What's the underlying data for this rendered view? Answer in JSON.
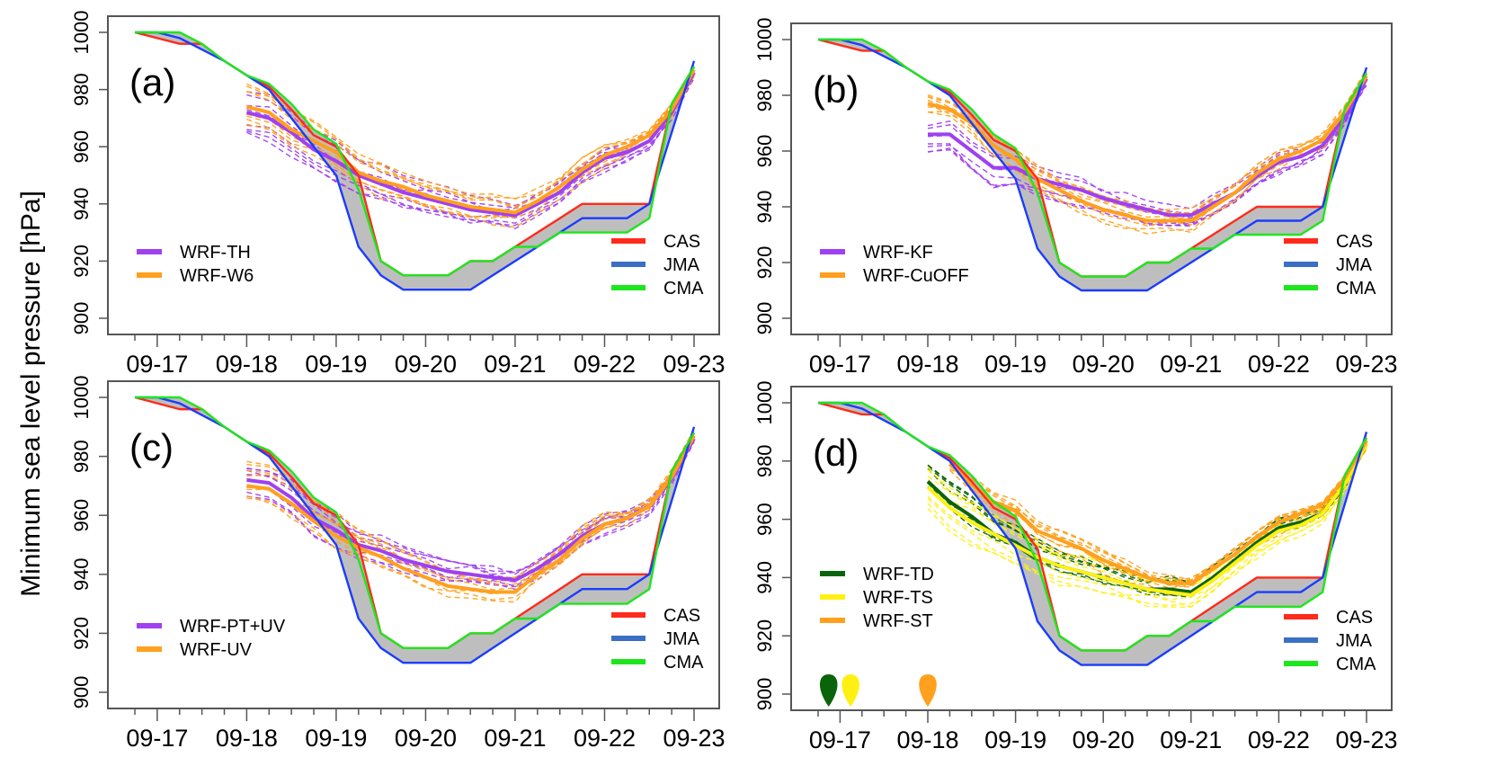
{
  "figure": {
    "ylabel": "Minimum sea level pressure [hPa]"
  },
  "chart_data": {
    "type": "line",
    "shared": {
      "x_unit": "days since 09-17 00:00 UTC",
      "xticks": [
        0,
        1,
        2,
        3,
        4,
        5,
        6
      ],
      "xtick_labels": [
        "09-17",
        "09-18",
        "09-19",
        "09-20",
        "09-21",
        "09-22",
        "09-23"
      ],
      "xlim": [
        -0.33,
        6.15
      ],
      "yticks": [
        900,
        920,
        940,
        960,
        980,
        1000
      ],
      "ytick_labels": [
        "900",
        "920",
        "940",
        "960",
        "980",
        "1000"
      ],
      "ylim": [
        897,
        1004
      ],
      "ylabel": "Minimum sea level pressure [hPa]",
      "grid": false,
      "observations": [
        {
          "name": "CAS",
          "color": "#ff2a1a",
          "x": [
            -0.25,
            0.25,
            0.5,
            0.75,
            1.0,
            1.25,
            1.5,
            1.75,
            2.0,
            2.25,
            2.5,
            2.75,
            3.0,
            3.25,
            3.5,
            3.75,
            4.0,
            4.25,
            4.5,
            4.75,
            5.0,
            5.25,
            5.5,
            5.75,
            6.0
          ],
          "y": [
            1000,
            996,
            996,
            990,
            985,
            981,
            973,
            964,
            960,
            950,
            920,
            915,
            915,
            915,
            920,
            920,
            925,
            930,
            935,
            940,
            940,
            940,
            940,
            975,
            988
          ]
        },
        {
          "name": "JMA",
          "color": "#1a3cff",
          "x": [
            -0.25,
            0.0,
            0.25,
            0.5,
            0.75,
            1.0,
            1.25,
            1.5,
            1.75,
            2.0,
            2.25,
            2.5,
            2.75,
            3.0,
            3.25,
            3.5,
            3.75,
            4.0,
            4.25,
            4.5,
            4.75,
            5.0,
            5.25,
            5.5,
            6.0
          ],
          "y": [
            1000,
            1000,
            998,
            994,
            990,
            985,
            980,
            970,
            960,
            950,
            925,
            915,
            910,
            910,
            910,
            910,
            915,
            920,
            925,
            930,
            935,
            935,
            935,
            940,
            990
          ]
        },
        {
          "name": "CMA",
          "color": "#1ee61e",
          "x": [
            -0.25,
            0.0,
            0.25,
            0.5,
            0.75,
            1.0,
            1.25,
            1.5,
            1.75,
            2.0,
            2.25,
            2.5,
            2.75,
            3.0,
            3.25,
            3.5,
            3.75,
            4.0,
            4.25,
            4.5,
            4.75,
            5.0,
            5.25,
            5.5,
            5.75,
            6.0
          ],
          "y": [
            1000,
            1000,
            1000,
            996,
            990,
            985,
            982,
            975,
            966,
            961,
            945,
            920,
            915,
            915,
            915,
            920,
            920,
            925,
            925,
            930,
            930,
            930,
            930,
            935,
            975,
            988
          ]
        }
      ],
      "obs_legend_color_jma": "#3a6fc4",
      "spread_fill_color": "#bebebe"
    },
    "panels": [
      {
        "id": "a",
        "label": "(a)",
        "legend": [
          "WRF-TH",
          "WRF-W6"
        ],
        "series": [
          {
            "name": "WRF-TH",
            "color": "#a040f0",
            "start": 1.0,
            "x": [
              1.0,
              1.25,
              1.5,
              1.75,
              2.0,
              2.25,
              2.5,
              2.75,
              3.0,
              3.25,
              3.5,
              3.75,
              4.0,
              4.25,
              4.5,
              4.75,
              5.0,
              5.25,
              5.5,
              5.75,
              6.0
            ],
            "mean": [
              972,
              970,
              965,
              959,
              955,
              950,
              947,
              944,
              942,
              940,
              938,
              937,
              936,
              940,
              944,
              951,
              956,
              958,
              962,
              972,
              986
            ],
            "spread": [
              8,
              8,
              8,
              7,
              7,
              6,
              6,
              5,
              5,
              5,
              4,
              4,
              4,
              4,
              4,
              4,
              4,
              3,
              3,
              2,
              2
            ]
          },
          {
            "name": "WRF-W6",
            "color": "#ffa01e",
            "start": 1.0,
            "x": [
              1.0,
              1.25,
              1.5,
              1.75,
              2.0,
              2.25,
              2.5,
              2.75,
              3.0,
              3.25,
              3.5,
              3.75,
              4.0,
              4.25,
              4.5,
              4.75,
              5.0,
              5.25,
              5.5,
              5.75,
              6.0
            ],
            "mean": [
              974,
              972,
              966,
              962,
              958,
              951,
              948,
              946,
              943,
              941,
              939,
              938,
              937,
              941,
              946,
              952,
              957,
              960,
              964,
              973,
              987
            ],
            "spread": [
              8,
              8,
              8,
              7,
              7,
              6,
              6,
              5,
              5,
              5,
              5,
              5,
              5,
              4,
              4,
              4,
              4,
              3,
              3,
              2,
              2
            ]
          }
        ]
      },
      {
        "id": "b",
        "label": "(b)",
        "legend": [
          "WRF-KF",
          "WRF-CuOFF"
        ],
        "series": [
          {
            "name": "WRF-KF",
            "color": "#a040f0",
            "start": 1.0,
            "x": [
              1.0,
              1.25,
              1.5,
              1.75,
              2.0,
              2.25,
              2.5,
              2.75,
              3.0,
              3.25,
              3.5,
              3.75,
              4.0,
              4.25,
              4.5,
              4.75,
              5.0,
              5.25,
              5.5,
              5.75,
              6.0
            ],
            "mean": [
              966,
              966,
              960,
              954,
              954,
              950,
              948,
              946,
              943,
              941,
              939,
              937,
              937,
              941,
              945,
              951,
              956,
              958,
              962,
              972,
              986
            ],
            "spread": [
              6,
              6,
              7,
              7,
              7,
              6,
              6,
              6,
              5,
              5,
              5,
              5,
              4,
              4,
              4,
              4,
              4,
              3,
              3,
              2,
              2
            ]
          },
          {
            "name": "WRF-CuOFF",
            "color": "#ffa01e",
            "start": 1.0,
            "x": [
              1.0,
              1.25,
              1.5,
              1.75,
              2.0,
              2.25,
              2.5,
              2.75,
              3.0,
              3.25,
              3.5,
              3.75,
              4.0,
              4.25,
              4.5,
              4.75,
              5.0,
              5.25,
              5.5,
              5.75,
              6.0
            ],
            "mean": [
              977,
              975,
              970,
              962,
              957,
              950,
              946,
              942,
              939,
              937,
              935,
              935,
              935,
              940,
              945,
              952,
              957,
              960,
              964,
              974,
              987
            ],
            "spread": [
              3,
              3,
              4,
              5,
              5,
              6,
              6,
              6,
              6,
              6,
              5,
              5,
              5,
              4,
              4,
              4,
              4,
              3,
              3,
              2,
              2
            ]
          }
        ]
      },
      {
        "id": "c",
        "label": "(c)",
        "legend": [
          "WRF-PT+UV",
          "WRF-UV"
        ],
        "series": [
          {
            "name": "WRF-PT+UV",
            "color": "#a040f0",
            "start": 1.0,
            "x": [
              1.0,
              1.25,
              1.5,
              1.75,
              2.0,
              2.25,
              2.5,
              2.75,
              3.0,
              3.25,
              3.5,
              3.75,
              4.0,
              4.25,
              4.5,
              4.75,
              5.0,
              5.25,
              5.5,
              5.75,
              6.0
            ],
            "mean": [
              972,
              971,
              966,
              959,
              955,
              950,
              948,
              945,
              943,
              941,
              940,
              939,
              938,
              942,
              947,
              953,
              957,
              959,
              963,
              973,
              986
            ],
            "spread": [
              6,
              6,
              7,
              7,
              7,
              6,
              6,
              5,
              5,
              5,
              4,
              4,
              4,
              4,
              4,
              4,
              4,
              3,
              3,
              2,
              2
            ]
          },
          {
            "name": "WRF-UV",
            "color": "#ffa01e",
            "start": 1.0,
            "x": [
              1.0,
              1.25,
              1.5,
              1.75,
              2.0,
              2.25,
              2.5,
              2.75,
              3.0,
              3.25,
              3.5,
              3.75,
              4.0,
              4.25,
              4.5,
              4.75,
              5.0,
              5.25,
              5.5,
              5.75,
              6.0
            ],
            "mean": [
              970,
              969,
              964,
              958,
              953,
              949,
              946,
              942,
              939,
              936,
              935,
              934,
              934,
              940,
              945,
              952,
              957,
              959,
              963,
              973,
              987
            ],
            "spread": [
              9,
              9,
              9,
              8,
              8,
              7,
              7,
              6,
              6,
              6,
              5,
              5,
              5,
              4,
              4,
              4,
              4,
              3,
              3,
              2,
              2
            ]
          }
        ]
      },
      {
        "id": "d",
        "label": "(d)",
        "legend": [
          "WRF-TD",
          "WRF-TS",
          "WRF-ST"
        ],
        "series": [
          {
            "name": "WRF-TD",
            "color": "#0a640a",
            "start": 1.0,
            "x": [
              1.0,
              1.25,
              1.5,
              1.75,
              2.0,
              2.25,
              2.5,
              2.75,
              3.0,
              3.25,
              3.5,
              3.75,
              4.0,
              4.25,
              4.5,
              4.75,
              5.0,
              5.25,
              5.5,
              5.75,
              6.0
            ],
            "mean": [
              973,
              966,
              961,
              955,
              952,
              947,
              944,
              942,
              940,
              938,
              936,
              936,
              935,
              940,
              946,
              952,
              957,
              959,
              962,
              972,
              986
            ],
            "spread": [
              8,
              8,
              8,
              8,
              7,
              7,
              6,
              6,
              6,
              5,
              5,
              5,
              5,
              4,
              4,
              4,
              4,
              3,
              3,
              2,
              2
            ]
          },
          {
            "name": "WRF-TS",
            "color": "#fff014",
            "start": 0.0,
            "x": [
              1.0,
              1.25,
              1.5,
              1.75,
              2.0,
              2.25,
              2.5,
              2.75,
              3.0,
              3.25,
              3.5,
              3.75,
              4.0,
              4.25,
              4.5,
              4.75,
              5.0,
              5.25,
              5.5,
              5.75,
              6.0
            ],
            "mean": [
              971,
              964,
              959,
              955,
              951,
              947,
              944,
              942,
              940,
              938,
              936,
              935,
              934,
              939,
              945,
              951,
              956,
              958,
              962,
              972,
              986
            ],
            "spread": [
              8,
              8,
              8,
              8,
              7,
              7,
              6,
              6,
              6,
              5,
              5,
              5,
              5,
              4,
              4,
              4,
              4,
              3,
              3,
              2,
              2
            ]
          },
          {
            "name": "WRF-ST",
            "color": "#ffa01e",
            "start": 1.0,
            "x": [
              1.25,
              1.5,
              1.75,
              2.0,
              2.25,
              2.5,
              2.75,
              3.0,
              3.25,
              3.5,
              3.75,
              4.0,
              4.25,
              4.5,
              4.75,
              5.0,
              5.25,
              5.5,
              5.75,
              6.0
            ],
            "mean": [
              979,
              972,
              966,
              963,
              956,
              953,
              950,
              946,
              943,
              940,
              938,
              938,
              943,
              948,
              954,
              959,
              962,
              965,
              974,
              987
            ],
            "spread": [
              3,
              4,
              4,
              5,
              5,
              5,
              5,
              5,
              5,
              4,
              4,
              4,
              4,
              4,
              4,
              4,
              3,
              3,
              2,
              2
            ]
          }
        ],
        "initial_time_markers": [
          {
            "name": "WRF-TD",
            "x": -0.13,
            "color": "#0a640a"
          },
          {
            "name": "WRF-TS",
            "x": 0.12,
            "color": "#fff014"
          },
          {
            "name": "WRF-ST",
            "x": 1.0,
            "color": "#ffa01e"
          }
        ]
      }
    ],
    "observation_legend": [
      "CAS",
      "JMA",
      "CMA"
    ]
  }
}
